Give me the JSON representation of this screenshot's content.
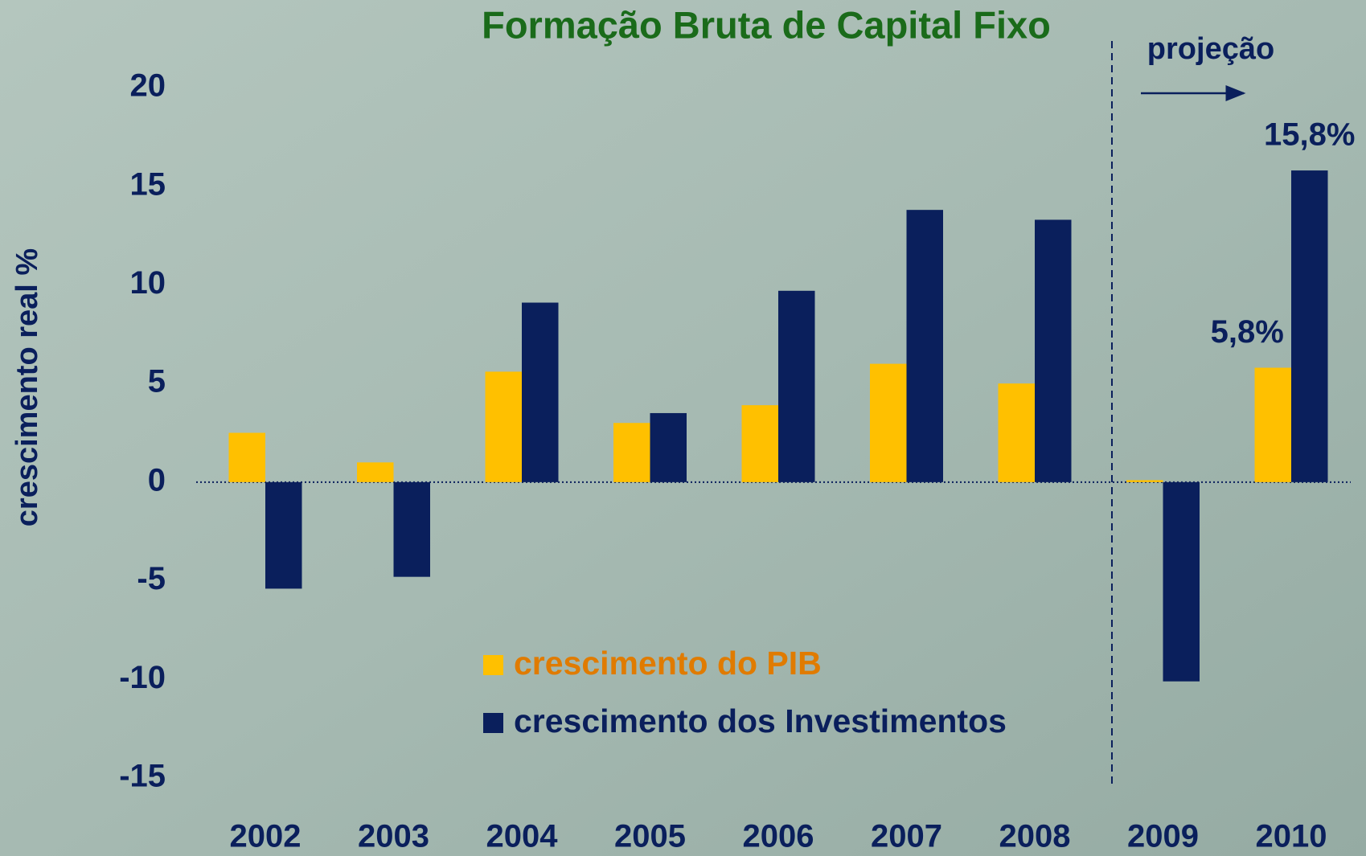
{
  "chart_data": {
    "type": "bar",
    "title": "Formação Bruta de Capital Fixo",
    "y_label": "crescimento real %",
    "annotation": "projeção",
    "categories": [
      "2002",
      "2003",
      "2004",
      "2005",
      "2006",
      "2007",
      "2008",
      "2009",
      "2010"
    ],
    "series": [
      {
        "name": "crescimento do PIB",
        "color": "#ffc000",
        "text_color": "#e07b00",
        "values": [
          2.5,
          1.0,
          5.6,
          3.0,
          3.9,
          6.0,
          5.0,
          0.1,
          5.8
        ],
        "value_labels": [
          null,
          null,
          null,
          null,
          null,
          null,
          null,
          null,
          "5,8%"
        ]
      },
      {
        "name": "crescimento dos Investimentos",
        "color": "#0a1f5c",
        "text_color": "#0a1f5c",
        "values": [
          -5.4,
          -4.8,
          9.1,
          3.5,
          9.7,
          13.8,
          13.3,
          -10.1,
          15.8
        ],
        "value_labels": [
          null,
          null,
          null,
          null,
          null,
          null,
          null,
          null,
          "15,8%"
        ]
      }
    ],
    "ylim": [
      -15,
      20
    ],
    "yticks": [
      -15,
      -10,
      -5,
      0,
      5,
      10,
      15,
      20
    ]
  }
}
